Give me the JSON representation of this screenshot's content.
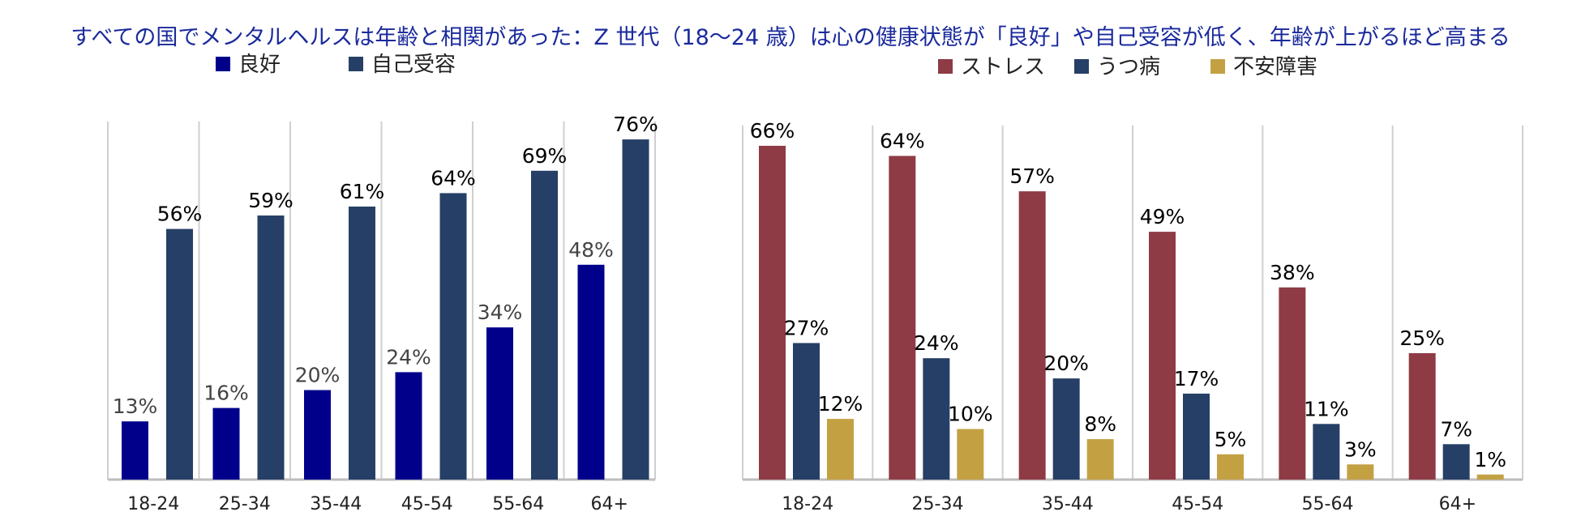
{
  "title": "すべての国でメンタルヘルスは年齢と相関があった：Z 世代（18～24 歳）は心の健康状態が「良好」や自己受容が低く、年齢が上がるほど高まる",
  "chart_data": [
    {
      "type": "bar",
      "categories": [
        "18-24",
        "25-34",
        "35-44",
        "45-54",
        "55-64",
        "64+"
      ],
      "series": [
        {
          "name": "良好",
          "values": [
            13,
            16,
            20,
            24,
            34,
            48
          ],
          "color": "#00008b",
          "label_color": "#444444"
        },
        {
          "name": "自己受容",
          "values": [
            56,
            59,
            61,
            64,
            69,
            76
          ],
          "color": "#263f66",
          "label_color": "#000000"
        }
      ],
      "ylim": [
        0,
        80
      ],
      "value_suffix": "%",
      "legend": "top-left"
    },
    {
      "type": "bar",
      "categories": [
        "18-24",
        "25-34",
        "35-44",
        "45-54",
        "55-64",
        "64+"
      ],
      "series": [
        {
          "name": "ストレス",
          "values": [
            66,
            64,
            57,
            49,
            38,
            25
          ],
          "color": "#8e3b45",
          "label_color": "#000000"
        },
        {
          "name": "うつ病",
          "values": [
            27,
            24,
            20,
            17,
            11,
            7
          ],
          "color": "#263f66",
          "label_color": "#000000"
        },
        {
          "name": "不安障害",
          "values": [
            12,
            10,
            8,
            5,
            3,
            1
          ],
          "color": "#c3a143",
          "label_color": "#000000"
        }
      ],
      "ylim": [
        0,
        70
      ],
      "value_suffix": "%",
      "legend": "top-right"
    }
  ]
}
